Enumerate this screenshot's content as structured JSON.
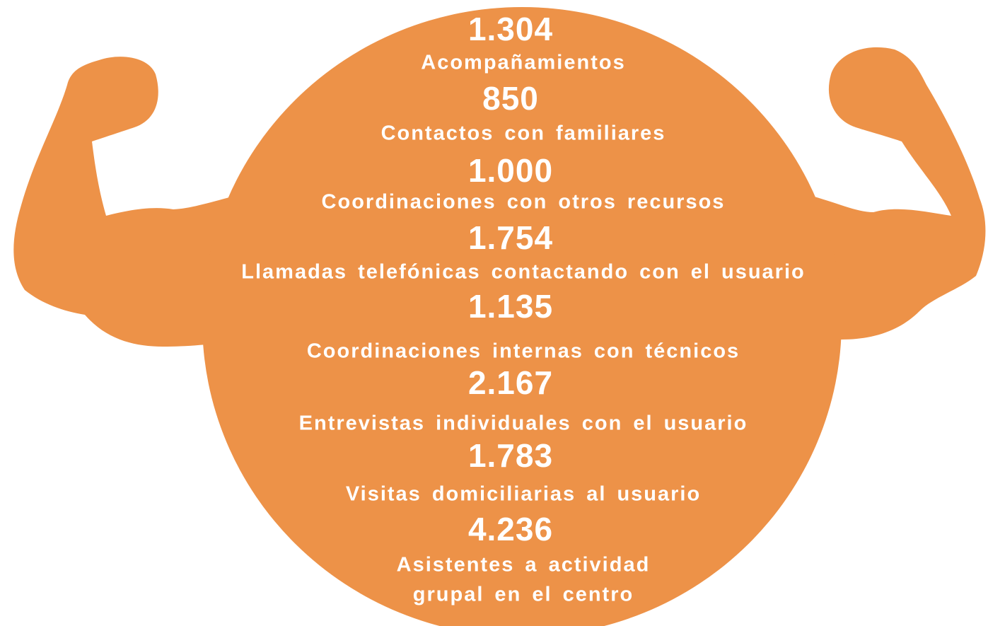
{
  "items": [
    {
      "value": "1.304",
      "label": [
        "Acompañamientos"
      ]
    },
    {
      "value": "850",
      "label": [
        "Contactos con familiares"
      ]
    },
    {
      "value": "1.000",
      "label": [
        "Coordinaciones con otros recursos"
      ]
    },
    {
      "value": "1.754",
      "label": [
        "Llamadas telefónicas contactando con el usuario"
      ]
    },
    {
      "value": "1.135",
      "label": [
        "Coordinaciones internas con técnicos"
      ]
    },
    {
      "value": "2.167",
      "label": [
        "Entrevistas individuales con el usuario"
      ]
    },
    {
      "value": "1.783",
      "label": [
        "Visitas domiciliarias al usuario"
      ]
    },
    {
      "value": "4.236",
      "label": [
        "Asistentes a actividad",
        "grupal en el centro"
      ]
    }
  ]
}
